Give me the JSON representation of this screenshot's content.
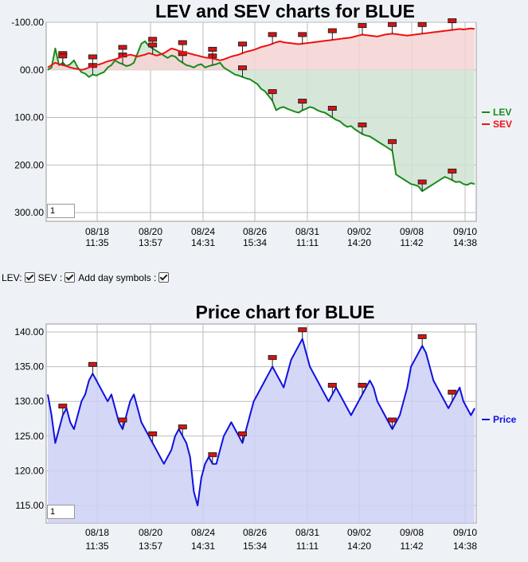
{
  "chart_data": [
    {
      "type": "area",
      "title": "LEV and SEV charts for BLUE",
      "ylim": [
        -100,
        300
      ],
      "yticks": [
        "-100.00",
        "00.00",
        "100.00",
        "200.00",
        "300.00"
      ],
      "ytick_values": [
        -100,
        0,
        100,
        200,
        300
      ],
      "xticks": [
        {
          "date": "08/18",
          "time": "11:35"
        },
        {
          "date": "08/20",
          "time": "13:57"
        },
        {
          "date": "08/24",
          "time": "14:31"
        },
        {
          "date": "08/26",
          "time": "15:34"
        },
        {
          "date": "08/31",
          "time": "11:11"
        },
        {
          "date": "09/02",
          "time": "14:20"
        },
        {
          "date": "09/08",
          "time": "11:42"
        },
        {
          "date": "09/10",
          "time": "14:38"
        }
      ],
      "grid": true,
      "legend": "right",
      "zoom_value": "1",
      "series": [
        {
          "name": "LEV",
          "color": "#1a8a1a",
          "fill": "#cfe3d3",
          "values": [
            0,
            -5,
            -45,
            -10,
            -15,
            -8,
            -12,
            -20,
            -5,
            5,
            8,
            15,
            10,
            12,
            8,
            5,
            -5,
            -10,
            -20,
            -15,
            -12,
            -8,
            -10,
            -15,
            -35,
            -55,
            -60,
            -50,
            -45,
            -40,
            -35,
            -30,
            -25,
            -30,
            -28,
            -20,
            -15,
            -10,
            -8,
            -5,
            -10,
            -12,
            -5,
            -8,
            -10,
            -12,
            -15,
            -5,
            0,
            5,
            10,
            12,
            15,
            18,
            20,
            25,
            30,
            40,
            45,
            55,
            65,
            85,
            80,
            78,
            82,
            85,
            88,
            90,
            85,
            82,
            78,
            80,
            85,
            88,
            90,
            95,
            100,
            105,
            108,
            115,
            120,
            118,
            125,
            130,
            135,
            138,
            140,
            145,
            150,
            155,
            160,
            165,
            170,
            220,
            225,
            230,
            235,
            240,
            242,
            245,
            255,
            250,
            245,
            240,
            235,
            230,
            225,
            228,
            232,
            236,
            235,
            240,
            242,
            238,
            240
          ]
        },
        {
          "name": "SEV",
          "color": "#ee1111",
          "fill": "#f5d3d3",
          "values": [
            -5,
            -10,
            -15,
            -12,
            -10,
            -8,
            -5,
            -3,
            -2,
            0,
            -2,
            -5,
            -8,
            -10,
            -12,
            -15,
            -18,
            -20,
            -22,
            -25,
            -28,
            -30,
            -32,
            -30,
            -28,
            -30,
            -32,
            -35,
            -33,
            -30,
            -32,
            -35,
            -40,
            -45,
            -43,
            -40,
            -38,
            -36,
            -34,
            -32,
            -30,
            -28,
            -26,
            -25,
            -24,
            -22,
            -20,
            -22,
            -25,
            -28,
            -30,
            -32,
            -35,
            -38,
            -40,
            -42,
            -45,
            -48,
            -50,
            -52,
            -55,
            -58,
            -60,
            -58,
            -57,
            -56,
            -55,
            -54,
            -55,
            -56,
            -57,
            -58,
            -59,
            -60,
            -61,
            -62,
            -63,
            -64,
            -65,
            -66,
            -67,
            -68,
            -70,
            -72,
            -74,
            -73,
            -72,
            -71,
            -70,
            -72,
            -74,
            -75,
            -76,
            -75,
            -74,
            -73,
            -72,
            -73,
            -74,
            -75,
            -76,
            -77,
            -78,
            -79,
            -80,
            -81,
            -82,
            -83,
            -84,
            -85,
            -86,
            -85,
            -86,
            -87,
            -86
          ]
        }
      ]
    },
    {
      "type": "area",
      "title": "Price chart for BLUE",
      "ylim": [
        112,
        141
      ],
      "yticks": [
        "115.00",
        "120.00",
        "125.00",
        "130.00",
        "135.00",
        "140.00"
      ],
      "ytick_values": [
        115,
        120,
        125,
        130,
        135,
        140
      ],
      "xticks": [
        {
          "date": "08/18",
          "time": "11:35"
        },
        {
          "date": "08/20",
          "time": "13:57"
        },
        {
          "date": "08/24",
          "time": "14:31"
        },
        {
          "date": "08/26",
          "time": "15:34"
        },
        {
          "date": "08/31",
          "time": "11:11"
        },
        {
          "date": "09/02",
          "time": "14:20"
        },
        {
          "date": "09/08",
          "time": "11:42"
        },
        {
          "date": "09/10",
          "time": "14:38"
        }
      ],
      "grid": true,
      "legend": "right",
      "zoom_value": "1",
      "series": [
        {
          "name": "Price",
          "color": "#1010e0",
          "fill": "#ccd0f4",
          "values": [
            131,
            128,
            124,
            126,
            128,
            129,
            127,
            126,
            128,
            130,
            131,
            133,
            134,
            133,
            132,
            131,
            130,
            131,
            129,
            127,
            126,
            128,
            130,
            131,
            129,
            127,
            126,
            125,
            124,
            123,
            122,
            121,
            122,
            123,
            125,
            126,
            125,
            124,
            122,
            117,
            115,
            119,
            121,
            122,
            121,
            121,
            123,
            125,
            126,
            127,
            126,
            125,
            124,
            126,
            128,
            130,
            131,
            132,
            133,
            134,
            135,
            134,
            133,
            132,
            134,
            136,
            137,
            138,
            139,
            137,
            135,
            134,
            133,
            132,
            131,
            130,
            131,
            132,
            131,
            130,
            129,
            128,
            129,
            130,
            131,
            132,
            133,
            132,
            130,
            129,
            128,
            127,
            126,
            127,
            128,
            130,
            132,
            135,
            136,
            137,
            138,
            137,
            135,
            133,
            132,
            131,
            130,
            129,
            130,
            131,
            132,
            130,
            129,
            128,
            129
          ]
        }
      ]
    }
  ],
  "controls": {
    "lev_label": "LEV:",
    "sev_label": "SEV :",
    "day_symbols_label": "Add day symbols :"
  }
}
